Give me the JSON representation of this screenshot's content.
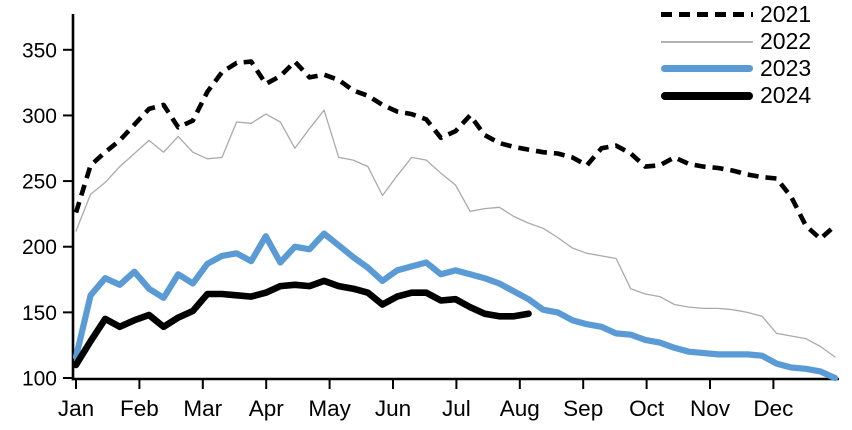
{
  "chart_data": {
    "type": "line",
    "title": "",
    "xlabel": "",
    "ylabel": "",
    "x_unit": "weeks (Jan-Dec)",
    "x_axis": {
      "tick_labels": [
        "Jan",
        "Feb",
        "Mar",
        "Apr",
        "May",
        "Jun",
        "Jul",
        "Aug",
        "Sep",
        "Oct",
        "Nov",
        "Dec"
      ]
    },
    "y_axis": {
      "tick_labels": [
        "100",
        "150",
        "200",
        "250",
        "300",
        "350"
      ],
      "ticks": [
        100,
        150,
        200,
        250,
        300,
        350
      ],
      "range": [
        100,
        375
      ]
    },
    "grid": false,
    "legend_position": "top-right",
    "colors": {
      "accent_blue": "#5b9bd5",
      "line_black": "#000000",
      "line_gray": "#aaaaaa"
    },
    "series": [
      {
        "name": "2021",
        "style": "dashed",
        "color": "#000000",
        "stroke_width": 4.6,
        "dash_pattern": "11 7",
        "values": [
          226,
          262,
          272,
          281,
          293,
          305,
          308,
          291,
          296,
          318,
          333,
          340,
          341,
          324,
          330,
          341,
          329,
          331,
          327,
          319,
          315,
          308,
          303,
          301,
          297,
          283,
          288,
          300,
          285,
          279,
          276,
          274,
          272,
          271,
          268,
          262,
          275,
          277,
          271,
          261,
          262,
          268,
          263,
          261,
          260,
          258,
          255,
          253,
          252,
          238,
          216,
          206,
          216
        ]
      },
      {
        "name": "2022",
        "style": "solid-thin",
        "color": "#aaaaaa",
        "stroke_width": 1.3,
        "dash_pattern": "",
        "values": [
          212,
          240,
          249,
          261,
          271,
          281,
          272,
          284,
          272,
          267,
          268,
          295,
          294,
          301,
          295,
          275,
          290,
          304,
          268,
          266,
          261,
          239,
          254,
          268,
          266,
          256,
          247,
          227,
          229,
          230,
          223,
          218,
          214,
          207,
          199,
          195,
          193,
          191,
          168,
          164,
          162,
          156,
          154,
          153,
          153,
          152,
          150,
          147,
          134,
          132,
          130,
          124,
          116
        ]
      },
      {
        "name": "2023",
        "style": "solid-thick",
        "color": "#5b9bd5",
        "stroke_width": 6.2,
        "dash_pattern": "",
        "values": [
          116,
          163,
          176,
          171,
          181,
          168,
          161,
          179,
          172,
          187,
          193,
          195,
          189,
          208,
          188,
          200,
          198,
          210,
          201,
          192,
          184,
          174,
          182,
          185,
          188,
          179,
          182,
          179,
          176,
          172,
          166,
          160,
          152,
          150,
          144,
          141,
          139,
          134,
          133,
          129,
          127,
          123,
          120,
          119,
          118,
          118,
          118,
          117,
          111,
          108,
          107,
          105,
          100
        ]
      },
      {
        "name": "2024",
        "style": "solid-thick",
        "color": "#000000",
        "stroke_width": 6.6,
        "dash_pattern": "",
        "values": [
          110,
          128,
          145,
          139,
          144,
          148,
          139,
          146,
          151,
          164,
          164,
          163,
          162,
          165,
          170,
          171,
          170,
          174,
          170,
          168,
          165,
          156,
          162,
          165,
          165,
          159,
          160,
          154,
          149,
          147,
          147,
          149
        ]
      }
    ]
  },
  "legend": {
    "items": [
      {
        "label": "2021"
      },
      {
        "label": "2022"
      },
      {
        "label": "2023"
      },
      {
        "label": "2024"
      }
    ]
  }
}
